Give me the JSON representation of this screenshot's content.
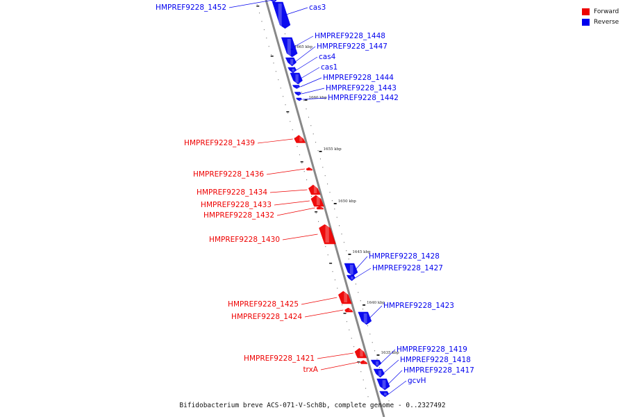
{
  "colors": {
    "forward": "#ee0000",
    "reverse": "#0000ee",
    "backbone": "#888888"
  },
  "legend": {
    "items": [
      {
        "label": "Forward",
        "strand": "forward"
      },
      {
        "label": "Reverse",
        "strand": "reverse"
      }
    ]
  },
  "caption": "Bifidobacterium breve ACS-071-V-Sch8b, complete genome - 0..2327492",
  "scale_marks": [
    {
      "text": "1665 kbp"
    },
    {
      "text": "1660 kbp"
    },
    {
      "text": "1655 kbp"
    },
    {
      "text": "1650 kbp"
    },
    {
      "text": "1645 kbp"
    },
    {
      "text": "1640 kbp"
    },
    {
      "text": "1635 kbp"
    }
  ],
  "genes": [
    {
      "label": "HMPREF9228_1452",
      "strand": "reverse"
    },
    {
      "label": "cas3",
      "strand": "reverse"
    },
    {
      "label": "HMPREF9228_1448",
      "strand": "reverse"
    },
    {
      "label": "HMPREF9228_1447",
      "strand": "reverse"
    },
    {
      "label": "cas4",
      "strand": "reverse"
    },
    {
      "label": "cas1",
      "strand": "reverse"
    },
    {
      "label": "HMPREF9228_1444",
      "strand": "reverse"
    },
    {
      "label": "HMPREF9228_1443",
      "strand": "reverse"
    },
    {
      "label": "HMPREF9228_1442",
      "strand": "reverse"
    },
    {
      "label": "HMPREF9228_1439",
      "strand": "forward"
    },
    {
      "label": "HMPREF9228_1436",
      "strand": "forward"
    },
    {
      "label": "HMPREF9228_1434",
      "strand": "forward"
    },
    {
      "label": "HMPREF9228_1433",
      "strand": "forward"
    },
    {
      "label": "HMPREF9228_1432",
      "strand": "forward"
    },
    {
      "label": "HMPREF9228_1430",
      "strand": "forward"
    },
    {
      "label": "HMPREF9228_1428",
      "strand": "reverse"
    },
    {
      "label": "HMPREF9228_1427",
      "strand": "reverse"
    },
    {
      "label": "HMPREF9228_1425",
      "strand": "forward"
    },
    {
      "label": "HMPREF9228_1424",
      "strand": "forward"
    },
    {
      "label": "HMPREF9228_1423",
      "strand": "reverse"
    },
    {
      "label": "HMPREF9228_1421",
      "strand": "forward"
    },
    {
      "label": "trxA",
      "strand": "forward"
    },
    {
      "label": "HMPREF9228_1419",
      "strand": "reverse"
    },
    {
      "label": "HMPREF9228_1418",
      "strand": "reverse"
    },
    {
      "label": "HMPREF9228_1417",
      "strand": "reverse"
    },
    {
      "label": "gcvH",
      "strand": "reverse"
    }
  ]
}
